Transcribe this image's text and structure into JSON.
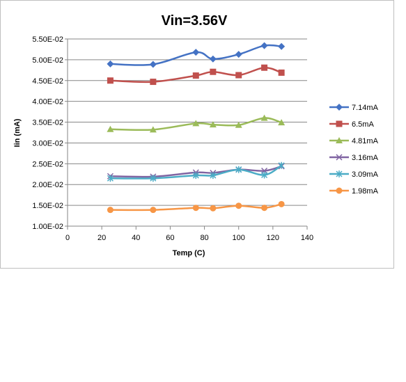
{
  "chart_data": {
    "type": "line",
    "title": "Vin=3.56V",
    "xlabel": "Temp (C)",
    "ylabel": "Iin (mA)",
    "xlim": [
      0,
      140
    ],
    "ylim": [
      0.01,
      0.055
    ],
    "x_ticks": [
      0,
      20,
      40,
      60,
      80,
      100,
      120,
      140
    ],
    "y_ticks": [
      0.01,
      0.015,
      0.02,
      0.025,
      0.03,
      0.035,
      0.04,
      0.045,
      0.05,
      0.055
    ],
    "y_tick_labels": [
      "1.00E-02",
      "1.50E-02",
      "2.00E-02",
      "2.50E-02",
      "3.00E-02",
      "3.50E-02",
      "4.00E-02",
      "4.50E-02",
      "5.00E-02",
      "5.50E-02"
    ],
    "grid": "horizontal",
    "legend_position": "right",
    "x": [
      25,
      50,
      75,
      85,
      100,
      115,
      125
    ],
    "series": [
      {
        "name": "7.14mA",
        "color": "#4472c4",
        "marker": "diamond",
        "values": [
          0.049,
          0.0489,
          0.0518,
          0.0502,
          0.0513,
          0.0534,
          0.0532
        ]
      },
      {
        "name": "6.5mA",
        "color": "#c0504d",
        "marker": "square",
        "values": [
          0.045,
          0.0447,
          0.0462,
          0.0471,
          0.0463,
          0.0481,
          0.0469
        ]
      },
      {
        "name": "4.81mA",
        "color": "#9bbb59",
        "marker": "triangle",
        "values": [
          0.0333,
          0.0332,
          0.0347,
          0.0344,
          0.0343,
          0.036,
          0.0349
        ]
      },
      {
        "name": "3.16mA",
        "color": "#8064a2",
        "marker": "x",
        "values": [
          0.022,
          0.0219,
          0.0229,
          0.0228,
          0.0236,
          0.0233,
          0.0244
        ]
      },
      {
        "name": "3.09mA",
        "color": "#4bacc6",
        "marker": "star",
        "values": [
          0.0215,
          0.0215,
          0.0222,
          0.0222,
          0.0236,
          0.0223,
          0.0246
        ]
      },
      {
        "name": "1.98mA",
        "color": "#f79646",
        "marker": "circle",
        "values": [
          0.0139,
          0.0139,
          0.0144,
          0.0143,
          0.0149,
          0.0144,
          0.0153
        ]
      }
    ]
  }
}
